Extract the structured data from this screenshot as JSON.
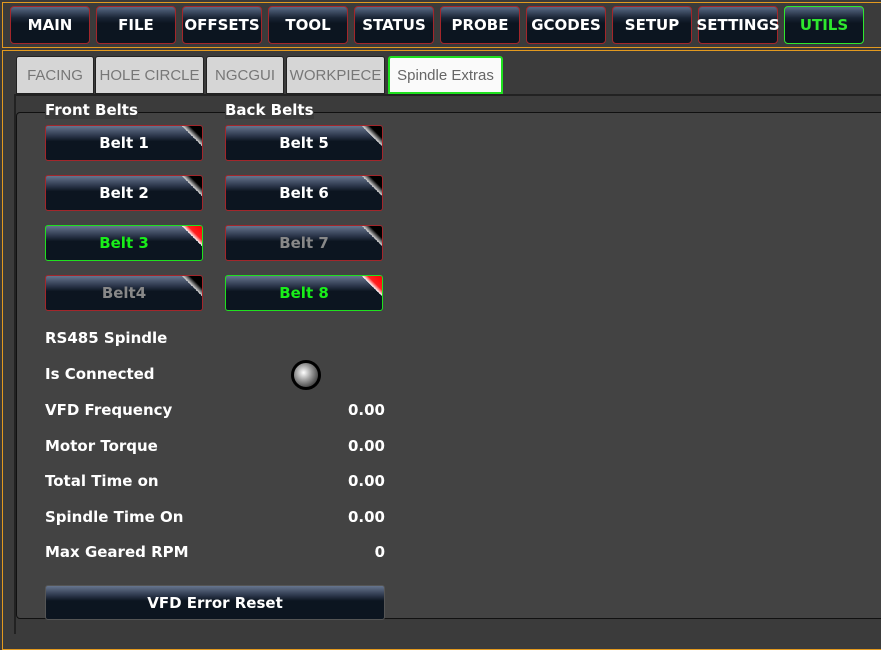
{
  "nav": [
    {
      "label": "MAIN"
    },
    {
      "label": "FILE"
    },
    {
      "label": "OFFSETS"
    },
    {
      "label": "TOOL"
    },
    {
      "label": "STATUS"
    },
    {
      "label": "PROBE"
    },
    {
      "label": "GCODES"
    },
    {
      "label": "SETUP"
    },
    {
      "label": "SETTINGS"
    },
    {
      "label": "UTILS",
      "active": true
    }
  ],
  "tabs": [
    {
      "label": "FACING"
    },
    {
      "label": "HOLE CIRCLE"
    },
    {
      "label": "NGCGUI"
    },
    {
      "label": "WORKPIECE"
    },
    {
      "label": "Spindle Extras",
      "active": true
    }
  ],
  "front_belts": {
    "title": "Front Belts",
    "items": [
      {
        "label": "Belt 1",
        "state": "normal"
      },
      {
        "label": "Belt 2",
        "state": "normal"
      },
      {
        "label": "Belt 3",
        "state": "active"
      },
      {
        "label": "Belt4",
        "state": "disabled"
      }
    ]
  },
  "back_belts": {
    "title": "Back Belts",
    "items": [
      {
        "label": "Belt 5",
        "state": "normal"
      },
      {
        "label": "Belt 6",
        "state": "normal"
      },
      {
        "label": "Belt 7",
        "state": "disabled"
      },
      {
        "label": "Belt 8",
        "state": "active"
      }
    ]
  },
  "rs485": {
    "title": "RS485 Spindle",
    "connected_label": "Is Connected",
    "connected": false,
    "rows": [
      {
        "label": "VFD Frequency",
        "value": "0.00"
      },
      {
        "label": "Motor Torque",
        "value": "0.00"
      },
      {
        "label": "Total Time on",
        "value": "0.00"
      },
      {
        "label": "Spindle Time On",
        "value": "0.00"
      },
      {
        "label": "Max Geared RPM",
        "value": "0"
      }
    ],
    "reset_label": "VFD Error Reset"
  },
  "colors": {
    "accent_active": "#1fe01f",
    "nav_border": "#a3262b",
    "frame_border": "#e39a1f"
  }
}
